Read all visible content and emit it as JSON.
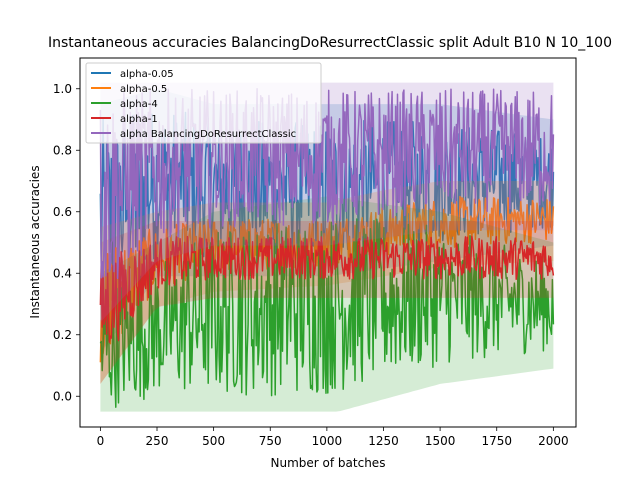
{
  "chart_data": {
    "type": "line",
    "title": "Instantaneous accuracies BalancingDoResurrectClassic split Adult B10 N 10_100",
    "xlabel": "Number of batches",
    "ylabel": "Instantaneous accuracies",
    "xlim": [
      -90,
      2100
    ],
    "ylim": [
      -0.1,
      1.1
    ],
    "xticks": [
      0,
      250,
      500,
      750,
      1000,
      1250,
      1500,
      1750,
      2000
    ],
    "yticks": [
      0.0,
      0.2,
      0.4,
      0.6,
      0.8,
      1.0
    ],
    "xtick_labels": [
      "0",
      "250",
      "500",
      "750",
      "1000",
      "1250",
      "1500",
      "1750",
      "2000"
    ],
    "ytick_labels": [
      "0.0",
      "0.2",
      "0.4",
      "0.6",
      "0.8",
      "1.0"
    ],
    "grid": false,
    "legend_position": "upper-left",
    "series": [
      {
        "name": "alpha-0.05",
        "color": "#1f77b4",
        "band": [
          [
            0,
            0.2,
            0.9
          ],
          [
            250,
            0.45,
            0.95
          ],
          [
            500,
            0.45,
            0.9
          ],
          [
            1000,
            0.45,
            0.9
          ],
          [
            1500,
            0.5,
            0.9
          ],
          [
            2000,
            0.55,
            0.85
          ]
        ]
      },
      {
        "name": "alpha-0.5",
        "color": "#ff7f0e",
        "band": [
          [
            0,
            0.1,
            0.5
          ],
          [
            250,
            0.35,
            0.55
          ],
          [
            500,
            0.4,
            0.58
          ],
          [
            1000,
            0.42,
            0.58
          ],
          [
            1250,
            0.45,
            0.62
          ],
          [
            1500,
            0.48,
            0.65
          ],
          [
            2000,
            0.5,
            0.65
          ]
        ]
      },
      {
        "name": "alpha-4",
        "color": "#2ca02c",
        "band": [
          [
            0,
            -0.05,
            0.35
          ],
          [
            250,
            0.0,
            0.45
          ],
          [
            500,
            0.0,
            0.55
          ],
          [
            1000,
            0.0,
            0.6
          ],
          [
            1500,
            0.1,
            0.55
          ],
          [
            2000,
            0.15,
            0.45
          ]
        ]
      },
      {
        "name": "alpha-1",
        "color": "#d62728",
        "band": [
          [
            0,
            0.1,
            0.45
          ],
          [
            250,
            0.35,
            0.52
          ],
          [
            500,
            0.38,
            0.52
          ],
          [
            1000,
            0.38,
            0.52
          ],
          [
            1500,
            0.38,
            0.52
          ],
          [
            2000,
            0.38,
            0.52
          ]
        ]
      },
      {
        "name": "alpha BalancingDoResurrectClassic",
        "color": "#9467bd",
        "band": [
          [
            0,
            0.3,
            1.0
          ],
          [
            250,
            0.5,
            1.0
          ],
          [
            500,
            0.55,
            1.0
          ],
          [
            1000,
            0.55,
            1.0
          ],
          [
            1500,
            0.6,
            1.0
          ],
          [
            2000,
            0.6,
            1.0
          ]
        ]
      }
    ]
  }
}
